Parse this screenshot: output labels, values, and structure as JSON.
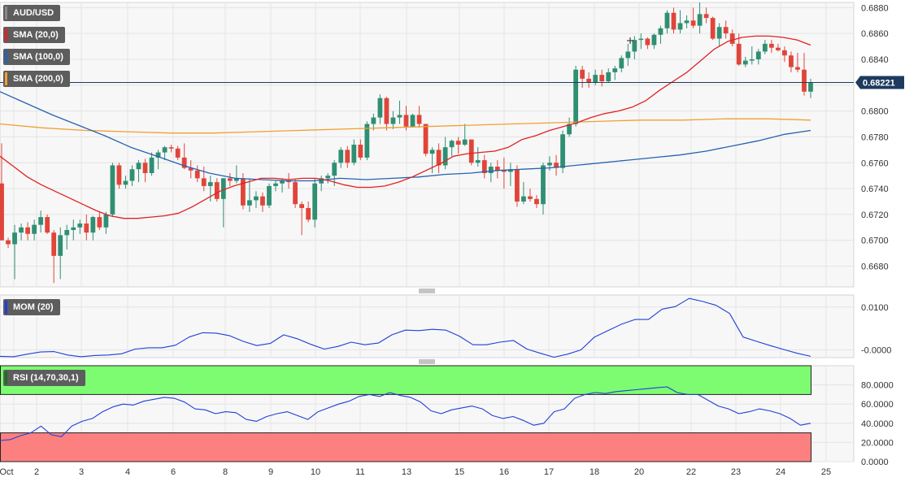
{
  "colors": {
    "up": "#2f8f73",
    "down": "#e0453a",
    "sma20": "#e02222",
    "sma100": "#2563b0",
    "sma200": "#f0a030",
    "mom": "#1f3fd8",
    "rsi": "#1f3fd8",
    "overbought_zone": "#7dfc72",
    "oversold_zone": "#fd8080",
    "price_tag": "#1e3a5f"
  },
  "chart_data": [
    {
      "type": "candlestick",
      "panel": "price",
      "legend": [
        "AUD/USD",
        "SMA (20,0)",
        "SMA (100,0)",
        "SMA (200,0)"
      ],
      "ylim": [
        0.6664,
        0.6884
      ],
      "yticks": [
        "0.6880",
        "0.6860",
        "0.6840",
        "0.6820",
        "0.6800",
        "0.6780",
        "0.6760",
        "0.6740",
        "0.6720",
        "0.6700",
        "0.6680"
      ],
      "last_price": "0.68221",
      "candles": [
        [
          0.6744,
          0.6775,
          0.67,
          0.67
        ],
        [
          0.67,
          0.6702,
          0.6694,
          0.6697
        ],
        [
          0.6697,
          0.6712,
          0.667,
          0.6706
        ],
        [
          0.6706,
          0.6713,
          0.67,
          0.671
        ],
        [
          0.671,
          0.6714,
          0.67,
          0.6705
        ],
        [
          0.6705,
          0.6716,
          0.67,
          0.6712
        ],
        [
          0.6712,
          0.6723,
          0.6706,
          0.6718
        ],
        [
          0.6718,
          0.672,
          0.6705,
          0.6706
        ],
        [
          0.6706,
          0.6708,
          0.6667,
          0.6688
        ],
        [
          0.6688,
          0.671,
          0.667,
          0.6704
        ],
        [
          0.6704,
          0.6712,
          0.6693,
          0.6708
        ],
        [
          0.6708,
          0.6716,
          0.67,
          0.671
        ],
        [
          0.671,
          0.6716,
          0.6705,
          0.6713
        ],
        [
          0.6713,
          0.672,
          0.67,
          0.6706
        ],
        [
          0.6706,
          0.6719,
          0.67,
          0.6718
        ],
        [
          0.6718,
          0.6722,
          0.6708,
          0.671
        ],
        [
          0.671,
          0.6722,
          0.6705,
          0.672
        ],
        [
          0.672,
          0.676,
          0.6718,
          0.6758
        ],
        [
          0.6758,
          0.676,
          0.674,
          0.6743
        ],
        [
          0.6743,
          0.675,
          0.674,
          0.6746
        ],
        [
          0.6746,
          0.6758,
          0.6742,
          0.6755
        ],
        [
          0.6755,
          0.6762,
          0.6745,
          0.676
        ],
        [
          0.676,
          0.6763,
          0.6745,
          0.6752
        ],
        [
          0.6752,
          0.6768,
          0.675,
          0.6764
        ],
        [
          0.6764,
          0.677,
          0.6755,
          0.6768
        ],
        [
          0.6768,
          0.6773,
          0.6762,
          0.6772
        ],
        [
          0.6772,
          0.6774,
          0.6768,
          0.6771
        ],
        [
          0.6771,
          0.6773,
          0.6762,
          0.6764
        ],
        [
          0.6764,
          0.6775,
          0.6755,
          0.6756
        ],
        [
          0.6756,
          0.6762,
          0.6748,
          0.6754
        ],
        [
          0.6754,
          0.6758,
          0.6745,
          0.6748
        ],
        [
          0.6748,
          0.6757,
          0.6738,
          0.6742
        ],
        [
          0.6742,
          0.675,
          0.673,
          0.6745
        ],
        [
          0.6745,
          0.6748,
          0.673,
          0.6732
        ],
        [
          0.6732,
          0.6748,
          0.671,
          0.6748
        ],
        [
          0.6748,
          0.6752,
          0.6742,
          0.6746
        ],
        [
          0.6746,
          0.6758,
          0.6744,
          0.6748
        ],
        [
          0.6748,
          0.6752,
          0.6724,
          0.6727
        ],
        [
          0.6727,
          0.6748,
          0.6722,
          0.6731
        ],
        [
          0.6731,
          0.6738,
          0.6725,
          0.6734
        ],
        [
          0.6734,
          0.6737,
          0.6722,
          0.6727
        ],
        [
          0.6727,
          0.6744,
          0.6725,
          0.6742
        ],
        [
          0.6742,
          0.6746,
          0.6738,
          0.6744
        ],
        [
          0.6744,
          0.6748,
          0.6737,
          0.6746
        ],
        [
          0.6746,
          0.6752,
          0.674,
          0.6745
        ],
        [
          0.6745,
          0.6747,
          0.6725,
          0.6728
        ],
        [
          0.6728,
          0.673,
          0.6704,
          0.6725
        ],
        [
          0.6725,
          0.673,
          0.6714,
          0.6716
        ],
        [
          0.6716,
          0.6748,
          0.671,
          0.6744
        ],
        [
          0.6744,
          0.675,
          0.6738,
          0.6748
        ],
        [
          0.6748,
          0.6752,
          0.6744,
          0.675
        ],
        [
          0.675,
          0.6762,
          0.6742,
          0.676
        ],
        [
          0.676,
          0.6772,
          0.6756,
          0.677
        ],
        [
          0.677,
          0.6773,
          0.6756,
          0.676
        ],
        [
          0.676,
          0.6778,
          0.6758,
          0.6774
        ],
        [
          0.6774,
          0.6778,
          0.6762,
          0.6764
        ],
        [
          0.6764,
          0.6792,
          0.6762,
          0.679
        ],
        [
          0.679,
          0.6798,
          0.6785,
          0.6795
        ],
        [
          0.6795,
          0.6813,
          0.679,
          0.681
        ],
        [
          0.681,
          0.6811,
          0.6785,
          0.679
        ],
        [
          0.679,
          0.68,
          0.6786,
          0.6795
        ],
        [
          0.6795,
          0.6808,
          0.679,
          0.6797
        ],
        [
          0.6797,
          0.6804,
          0.6785,
          0.6788
        ],
        [
          0.6788,
          0.6798,
          0.679,
          0.6797
        ],
        [
          0.6797,
          0.6804,
          0.6787,
          0.679
        ],
        [
          0.679,
          0.679,
          0.6765,
          0.6767
        ],
        [
          0.6767,
          0.6772,
          0.6752,
          0.677
        ],
        [
          0.677,
          0.6775,
          0.6752,
          0.6758
        ],
        [
          0.6758,
          0.678,
          0.6755,
          0.6772
        ],
        [
          0.6772,
          0.6778,
          0.6765,
          0.6777
        ],
        [
          0.6777,
          0.678,
          0.6767,
          0.6774
        ],
        [
          0.6774,
          0.679,
          0.6773,
          0.6778
        ],
        [
          0.6778,
          0.6778,
          0.6758,
          0.676
        ],
        [
          0.676,
          0.6772,
          0.6757,
          0.6762
        ],
        [
          0.6762,
          0.6766,
          0.6748,
          0.6752
        ],
        [
          0.6752,
          0.676,
          0.6745,
          0.6757
        ],
        [
          0.6757,
          0.6762,
          0.6748,
          0.6754
        ],
        [
          0.6754,
          0.6764,
          0.674,
          0.6753
        ],
        [
          0.6753,
          0.676,
          0.6742,
          0.6755
        ],
        [
          0.6755,
          0.6758,
          0.6726,
          0.673
        ],
        [
          0.673,
          0.6745,
          0.6728,
          0.6734
        ],
        [
          0.6734,
          0.674,
          0.673,
          0.6732
        ],
        [
          0.6732,
          0.6735,
          0.6725,
          0.6728
        ],
        [
          0.6728,
          0.676,
          0.672,
          0.6758
        ],
        [
          0.6758,
          0.6765,
          0.6754,
          0.676
        ],
        [
          0.676,
          0.6766,
          0.675,
          0.6756
        ],
        [
          0.6756,
          0.6785,
          0.6752,
          0.6782
        ],
        [
          0.6782,
          0.6795,
          0.678,
          0.679
        ],
        [
          0.679,
          0.6835,
          0.6788,
          0.6832
        ],
        [
          0.6832,
          0.6835,
          0.6818,
          0.6825
        ],
        [
          0.6825,
          0.683,
          0.6818,
          0.6822
        ],
        [
          0.6822,
          0.6832,
          0.682,
          0.6828
        ],
        [
          0.6828,
          0.6832,
          0.6819,
          0.6823
        ],
        [
          0.6823,
          0.6833,
          0.6822,
          0.683
        ],
        [
          0.683,
          0.6835,
          0.6824,
          0.6833
        ],
        [
          0.6833,
          0.6843,
          0.683,
          0.6841
        ],
        [
          0.6841,
          0.6852,
          0.6835,
          0.6846
        ],
        [
          0.6846,
          0.6858,
          0.684,
          0.6855
        ],
        [
          0.6855,
          0.686,
          0.6848,
          0.6856
        ],
        [
          0.6856,
          0.6857,
          0.6848,
          0.6851
        ],
        [
          0.6851,
          0.686,
          0.6848,
          0.6859
        ],
        [
          0.6859,
          0.6866,
          0.6852,
          0.6864
        ],
        [
          0.6864,
          0.6878,
          0.686,
          0.6876
        ],
        [
          0.6876,
          0.688,
          0.686,
          0.6863
        ],
        [
          0.6863,
          0.6878,
          0.686,
          0.6868
        ],
        [
          0.6868,
          0.6874,
          0.6864,
          0.687
        ],
        [
          0.687,
          0.688,
          0.6864,
          0.6866
        ],
        [
          0.6866,
          0.6884,
          0.686,
          0.6875
        ],
        [
          0.6875,
          0.688,
          0.6868,
          0.6872
        ],
        [
          0.6872,
          0.6873,
          0.6855,
          0.6856
        ],
        [
          0.6856,
          0.6868,
          0.685,
          0.6865
        ],
        [
          0.6865,
          0.687,
          0.6856,
          0.686
        ],
        [
          0.686,
          0.6863,
          0.685,
          0.6852
        ],
        [
          0.6852,
          0.686,
          0.6835,
          0.6836
        ],
        [
          0.6836,
          0.6842,
          0.6834,
          0.6839
        ],
        [
          0.6839,
          0.685,
          0.6836,
          0.684
        ],
        [
          0.684,
          0.6848,
          0.6836,
          0.6846
        ],
        [
          0.6846,
          0.6855,
          0.6844,
          0.6852
        ],
        [
          0.6852,
          0.6855,
          0.6845,
          0.6849
        ],
        [
          0.6849,
          0.6852,
          0.6846,
          0.6847
        ],
        [
          0.6847,
          0.685,
          0.6838,
          0.6843
        ],
        [
          0.6843,
          0.6846,
          0.683,
          0.6834
        ],
        [
          0.6834,
          0.6845,
          0.683,
          0.6832
        ],
        [
          0.6832,
          0.6845,
          0.6812,
          0.6815
        ],
        [
          0.6815,
          0.6825,
          0.681,
          0.6822
        ]
      ],
      "series": [
        {
          "name": "SMA (20,0)",
          "values": [
            0.6765,
            0.6757,
            0.6749,
            0.6743,
            0.6738,
            0.6733,
            0.6728,
            0.6723,
            0.6719,
            0.6717,
            0.6717,
            0.6718,
            0.6719,
            0.6721,
            0.6726,
            0.6732,
            0.6738,
            0.6742,
            0.6745,
            0.6748,
            0.6748,
            0.6747,
            0.6748,
            0.6748,
            0.6746,
            0.6743,
            0.6741,
            0.6741,
            0.6742,
            0.6745,
            0.6749,
            0.6754,
            0.6759,
            0.6765,
            0.6767,
            0.6768,
            0.6769,
            0.6772,
            0.6778,
            0.6781,
            0.6785,
            0.6788,
            0.6791,
            0.6795,
            0.6798,
            0.68,
            0.6803,
            0.6808,
            0.6816,
            0.6823,
            0.683,
            0.6839,
            0.6848,
            0.6854,
            0.6857,
            0.6858,
            0.6858,
            0.6857,
            0.6855,
            0.6851
          ]
        },
        {
          "name": "SMA (100,0)",
          "values": [
            0.6815,
            0.6806,
            0.6797,
            0.6789,
            0.6781,
            0.6772,
            0.6765,
            0.6758,
            0.6752,
            0.6748,
            0.6747,
            0.6746,
            0.6746,
            0.6748,
            0.6747,
            0.6748,
            0.6749,
            0.6751,
            0.6752,
            0.6754,
            0.6755,
            0.6756,
            0.6758,
            0.676,
            0.6762,
            0.6764,
            0.6766,
            0.6769,
            0.6773,
            0.6777,
            0.6782,
            0.6785
          ]
        },
        {
          "name": "SMA (200,0)",
          "values": [
            0.679,
            0.6787,
            0.6785,
            0.6784,
            0.6783,
            0.6783,
            0.6784,
            0.6785,
            0.6786,
            0.6787,
            0.6788,
            0.6789,
            0.679,
            0.6791,
            0.6792,
            0.6793,
            0.6793,
            0.6794,
            0.6794,
            0.6793
          ]
        }
      ]
    },
    {
      "type": "line",
      "panel": "mom",
      "legend": [
        "MOM (20)"
      ],
      "ylim": [
        -0.0018,
        0.0128
      ],
      "yticks": [
        {
          "label": "0.0100",
          "value": 0.01
        },
        {
          "label": "-0.0000",
          "value": 0
        }
      ],
      "series": [
        {
          "name": "MOM (20)",
          "values": [
            -0.0015,
            -0.0016,
            -0.001,
            -0.0005,
            -0.0004,
            -0.0012,
            -0.0016,
            -0.0013,
            -0.0012,
            -0.0009,
            0.0002,
            0.0005,
            0.0005,
            0.0011,
            0.003,
            0.004,
            0.0039,
            0.0033,
            0.002,
            0.001,
            0.0015,
            0.0035,
            0.0026,
            0.0013,
            0.0002,
            0.0008,
            0.0018,
            0.0012,
            0.0016,
            0.0035,
            0.0046,
            0.0045,
            0.0048,
            0.0046,
            0.0032,
            0.0012,
            0.0012,
            0.0018,
            0.0022,
            0.0002,
            -0.0008,
            -0.0017,
            -0.001,
            0.0,
            0.003,
            0.0045,
            0.006,
            0.0071,
            0.0071,
            0.0095,
            0.0101,
            0.012,
            0.0113,
            0.0104,
            0.0085,
            0.003,
            0.002,
            0.001,
            0.0001,
            -0.0008,
            -0.0015
          ]
        }
      ]
    },
    {
      "type": "line",
      "panel": "rsi",
      "legend": [
        "RSI (14,70,30,1)"
      ],
      "ylim": [
        0,
        100
      ],
      "yticks": [
        "80.0000",
        "60.0000",
        "40.0000",
        "20.0000",
        "0.0000"
      ],
      "levels": [
        70,
        30
      ],
      "series": [
        {
          "name": "RSI (14,70,30,1)",
          "values": [
            22,
            23,
            27,
            30,
            37,
            28,
            26,
            37,
            42,
            45,
            52,
            57,
            60,
            59,
            63,
            65,
            67,
            66,
            62,
            55,
            54,
            50,
            52,
            51,
            44,
            42,
            47,
            50,
            52,
            48,
            44,
            52,
            56,
            60,
            63,
            68,
            70,
            68,
            72,
            69,
            67,
            62,
            53,
            50,
            54,
            56,
            58,
            55,
            48,
            45,
            47,
            43,
            38,
            40,
            52,
            55,
            66,
            70,
            72,
            71,
            73,
            74,
            75,
            76,
            77,
            78,
            72,
            70,
            70,
            64,
            58,
            55,
            50,
            52,
            55,
            53,
            50,
            45,
            38,
            40
          ]
        }
      ]
    }
  ],
  "x_axis": {
    "labels": [
      "Oct",
      "2",
      "3",
      "4",
      "6",
      "8",
      "9",
      "10",
      "11",
      "13",
      "15",
      "16",
      "17",
      "18",
      "20",
      "22",
      "23",
      "24",
      "25"
    ]
  }
}
